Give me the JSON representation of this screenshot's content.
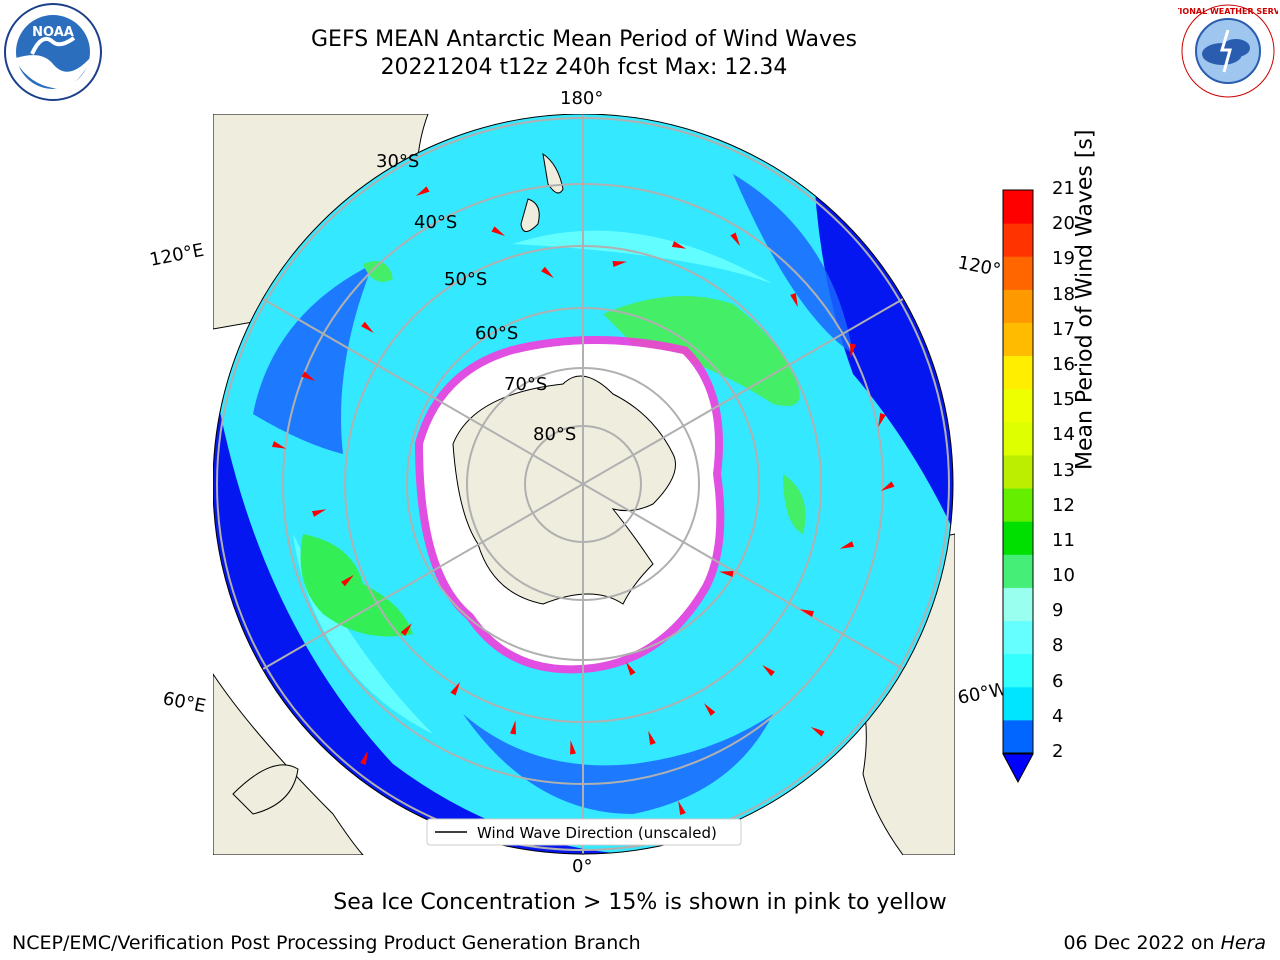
{
  "title": {
    "line1": "GEFS MEAN Antarctic Mean Period of Wind Waves",
    "line2": "20221204 t12z 240h fcst   Max: 12.34"
  },
  "map": {
    "projection": "south polar stereographic",
    "longitude_labels": [
      "180°",
      "120°E",
      "120°W",
      "60°E",
      "60°W",
      "0°"
    ],
    "latitude_labels": [
      "30°S",
      "40°S",
      "50°S",
      "60°S",
      "70°S",
      "80°S"
    ],
    "legend": "Wind Wave Direction (unscaled)",
    "colors": {
      "land": "#efedde",
      "sea_ice": "#ff33dd",
      "arrows": "#ff0000"
    }
  },
  "colorbar": {
    "label": "Mean Period of Wind Waves [s]",
    "ticks": [
      "2",
      "4",
      "6",
      "8",
      "9",
      "10",
      "11",
      "12",
      "13",
      "14",
      "15",
      "16",
      "17",
      "18",
      "19",
      "20",
      "21"
    ],
    "colors": [
      "#0066ff",
      "#00e5ff",
      "#33ffff",
      "#66ffff",
      "#99ffee",
      "#44ee77",
      "#00e000",
      "#66ee00",
      "#bbee00",
      "#ddff00",
      "#eeff00",
      "#ffee00",
      "#ffbb00",
      "#ff9900",
      "#ff6600",
      "#ff3300",
      "#ff0000"
    ],
    "under_color": "#0000ff"
  },
  "note": "Sea Ice Concentration > 15% is shown in pink to yellow",
  "footer": {
    "left": "NCEP/EMC/Verification Post Processing Product Generation Branch",
    "date": "06 Dec 2022 on ",
    "host": "Hera"
  },
  "logos": {
    "noaa_text": "NOAA",
    "nws_text": "NATIONAL WEATHER SERVICE"
  }
}
